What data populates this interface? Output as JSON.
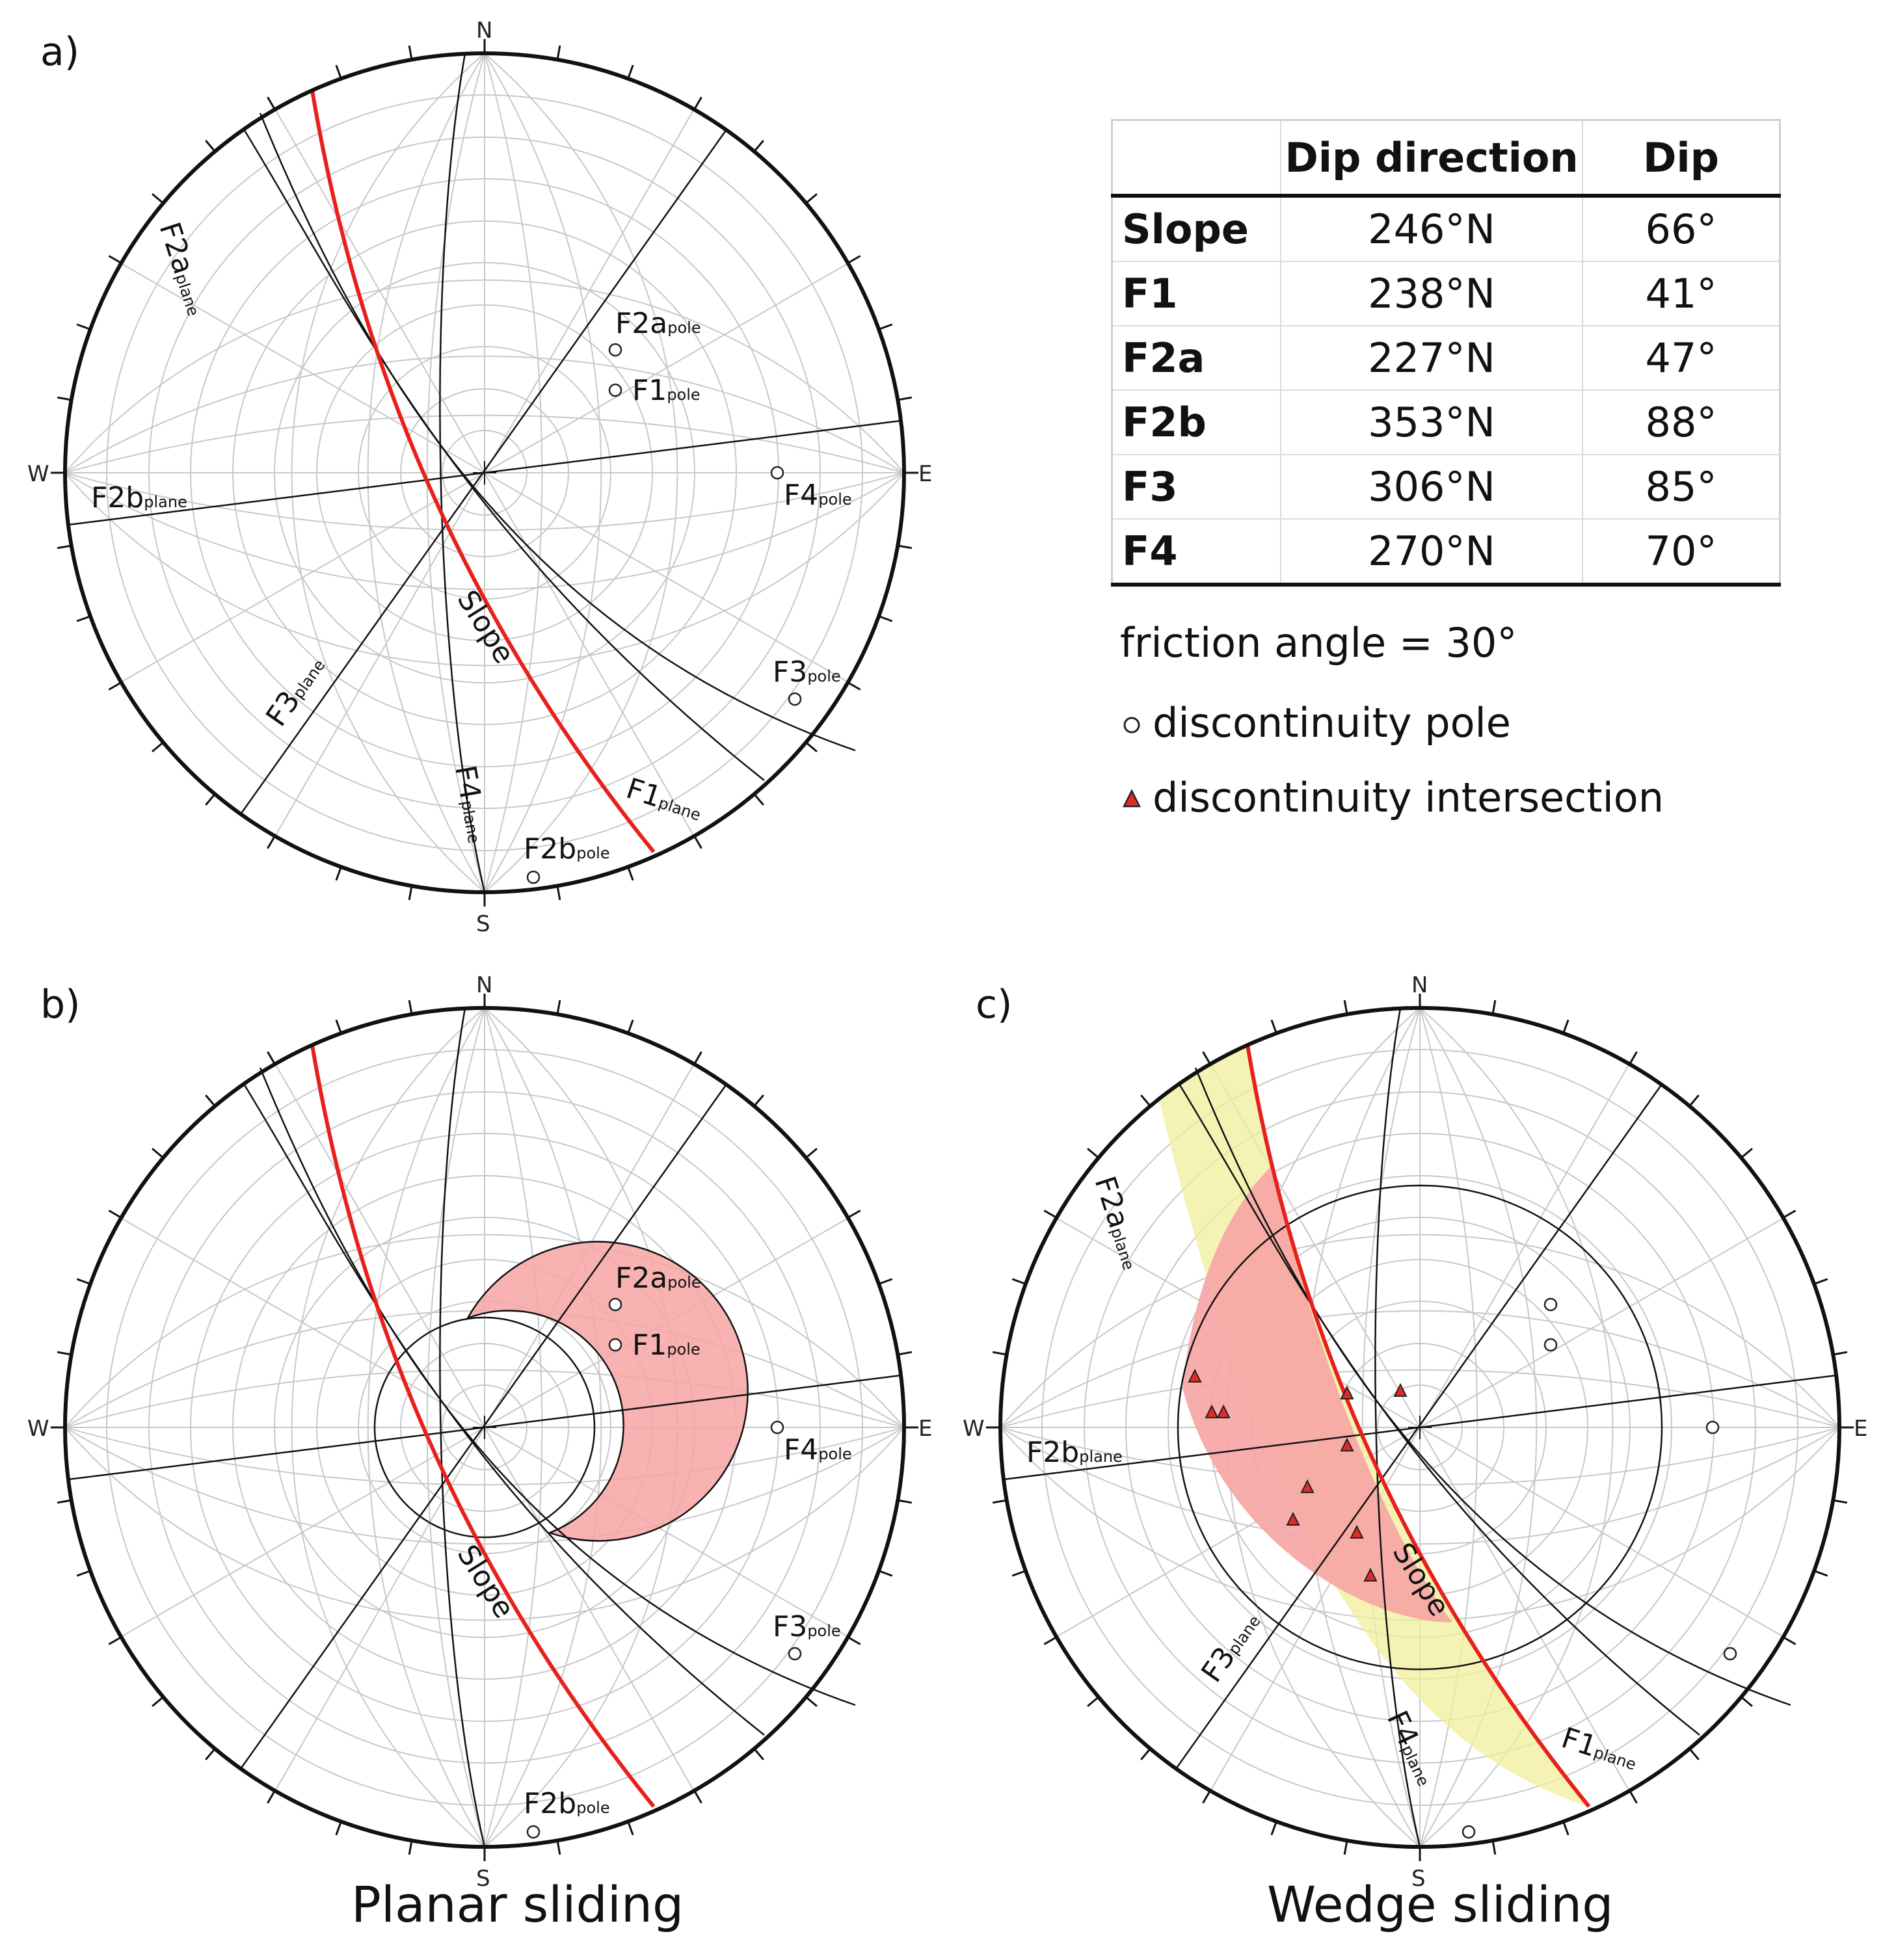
{
  "panels": {
    "a": {
      "label": "a)",
      "caption": ""
    },
    "b": {
      "label": "b)",
      "caption": "Planar sliding"
    },
    "c": {
      "label": "c)",
      "caption": "Wedge sliding"
    }
  },
  "cardinals": {
    "n": "N",
    "e": "E",
    "s": "S",
    "w": "W"
  },
  "plane_labels": {
    "slope": "Slope",
    "f1": {
      "base": "F1",
      "sub": "plane"
    },
    "f2a": {
      "base": "F2a",
      "sub": "plane"
    },
    "f2b": {
      "base": "F2b",
      "sub": "plane"
    },
    "f3": {
      "base": "F3",
      "sub": "plane"
    },
    "f4": {
      "base": "F4",
      "sub": "plane"
    }
  },
  "pole_labels": {
    "f1": {
      "base": "F1",
      "sub": "pole"
    },
    "f2a": {
      "base": "F2a",
      "sub": "pole"
    },
    "f2b": {
      "base": "F2b",
      "sub": "pole"
    },
    "f3": {
      "base": "F3",
      "sub": "pole"
    },
    "f4": {
      "base": "F4",
      "sub": "pole"
    }
  },
  "table": {
    "headers": [
      "",
      "Dip direction",
      "Dip"
    ],
    "rows": [
      {
        "name": "Slope",
        "dip_direction": "246°N",
        "dip": "66°"
      },
      {
        "name": "F1",
        "dip_direction": "238°N",
        "dip": "41°"
      },
      {
        "name": "F2a",
        "dip_direction": "227°N",
        "dip": "47°"
      },
      {
        "name": "F2b",
        "dip_direction": "353°N",
        "dip": "88°"
      },
      {
        "name": "F3",
        "dip_direction": "306°N",
        "dip": "85°"
      },
      {
        "name": "F4",
        "dip_direction": "270°N",
        "dip": "70°"
      }
    ]
  },
  "legend": {
    "friction": "friction angle = 30°",
    "pole": "discontinuity pole",
    "intersection": "discontinuity intersection"
  },
  "colors": {
    "slope": "#e8201c",
    "planar_zone": "#f7a4a4",
    "wedge_zone": "#f2ef9a",
    "intersection": "#e32a2a"
  }
}
